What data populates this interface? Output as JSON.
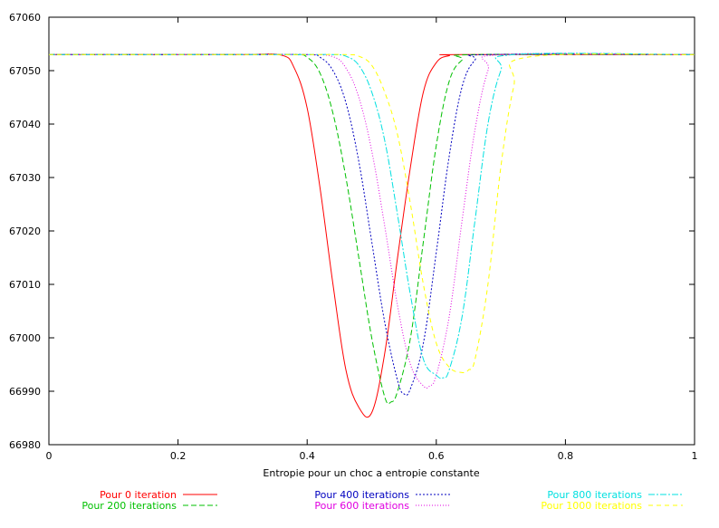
{
  "chart_data": {
    "type": "line",
    "title": "",
    "xlabel": "Entropie pour un choc a entropie constante",
    "ylabel": "",
    "xlim": [
      0,
      1
    ],
    "ylim": [
      66980,
      67060
    ],
    "x_ticks": [
      0,
      0.2,
      0.4,
      0.6,
      0.8,
      1
    ],
    "x_tick_labels": [
      "0",
      "0.2",
      "0.4",
      "0.6",
      "0.8",
      "1"
    ],
    "y_ticks": [
      66980,
      66990,
      67000,
      67010,
      67020,
      67030,
      67040,
      67050,
      67060
    ],
    "y_tick_labels": [
      "66980",
      "66990",
      "67000",
      "67010",
      "67020",
      "67030",
      "67040",
      "67050",
      "67060"
    ],
    "grid": false,
    "legend_position": "bottom",
    "baseline": 67053,
    "series": [
      {
        "name": "Pour 0 iteration",
        "color": "#ff0000",
        "dash": "solid",
        "x": [
          0,
          0.1,
          0.2,
          0.3,
          0.36,
          0.38,
          0.4,
          0.42,
          0.44,
          0.46,
          0.48,
          0.5,
          0.52,
          0.54,
          0.56,
          0.58,
          0.6,
          0.62,
          0.64,
          1
        ],
        "y": [
          67053,
          67053,
          67053,
          67053,
          67052.9,
          67050.5,
          67043,
          67028,
          67010,
          66994,
          66987,
          66986,
          66997,
          67015,
          67032,
          67046,
          67051.5,
          67052.8,
          67053,
          67053
        ]
      },
      {
        "name": "Pour 200 iterations",
        "color": "#00c000",
        "dash": "6,3",
        "x": [
          0,
          0.1,
          0.2,
          0.3,
          0.38,
          0.4,
          0.42,
          0.44,
          0.46,
          0.48,
          0.5,
          0.52,
          0.53,
          0.54,
          0.56,
          0.58,
          0.6,
          0.62,
          0.64,
          0.66,
          1
        ],
        "y": [
          67053,
          67053,
          67053,
          67053,
          67053,
          67052.5,
          67049.5,
          67042,
          67030,
          67015,
          67000,
          66989,
          66988,
          66990,
          67000,
          67018,
          67036,
          67048,
          67052,
          67053,
          67053
        ]
      },
      {
        "name": "Pour 400 iterations",
        "color": "#0000c0",
        "dash": "2,2",
        "x": [
          0,
          0.1,
          0.2,
          0.3,
          0.4,
          0.42,
          0.44,
          0.46,
          0.48,
          0.5,
          0.52,
          0.54,
          0.55,
          0.56,
          0.58,
          0.6,
          0.62,
          0.64,
          0.66,
          0.68,
          1
        ],
        "y": [
          67053,
          67053,
          67053,
          67053,
          67053,
          67052.5,
          67050,
          67044,
          67033,
          67018,
          67003,
          66992,
          66989.5,
          66990.5,
          66999,
          67016,
          67034,
          67047,
          67052,
          67053,
          67053
        ]
      },
      {
        "name": "Pour 600 iterations",
        "color": "#e000e0",
        "dash": "1,2",
        "x": [
          0,
          0.1,
          0.2,
          0.3,
          0.4,
          0.44,
          0.46,
          0.48,
          0.5,
          0.52,
          0.54,
          0.56,
          0.58,
          0.59,
          0.6,
          0.62,
          0.64,
          0.66,
          0.68,
          0.7,
          1
        ],
        "y": [
          67053,
          67053,
          67053,
          67053,
          67053,
          67052.6,
          67050.5,
          67045,
          67035,
          67021,
          67006,
          66995,
          66991,
          66991,
          66993,
          67004,
          67022,
          67039,
          67050,
          67053,
          67053
        ]
      },
      {
        "name": "Pour 800 iterations",
        "color": "#00e0e0",
        "dash": "7,2,2,2",
        "x": [
          0,
          0.1,
          0.2,
          0.3,
          0.4,
          0.44,
          0.46,
          0.48,
          0.5,
          0.52,
          0.54,
          0.56,
          0.58,
          0.6,
          0.61,
          0.62,
          0.64,
          0.66,
          0.68,
          0.7,
          0.72,
          1
        ],
        "y": [
          67053,
          67053,
          67053,
          67053,
          67053,
          67053,
          67052.7,
          67051,
          67046,
          67037,
          67023,
          67008,
          66996,
          66993,
          66992.5,
          66994,
          67004,
          67022,
          67040,
          67050,
          67053,
          67053
        ]
      },
      {
        "name": "Pour 1000 iterations",
        "color": "#ffff00",
        "dash": "5,4",
        "x": [
          0,
          0.1,
          0.2,
          0.3,
          0.4,
          0.46,
          0.48,
          0.5,
          0.52,
          0.54,
          0.56,
          0.58,
          0.6,
          0.62,
          0.64,
          0.65,
          0.66,
          0.68,
          0.7,
          0.72,
          0.74,
          1
        ],
        "y": [
          67053,
          67053,
          67053,
          67053,
          67053,
          67053,
          67052.7,
          67051,
          67046,
          67038,
          67025,
          67010,
          66999,
          66994.5,
          66993.5,
          66994,
          66996,
          67010,
          67032,
          67047,
          67052.5,
          67053
        ]
      }
    ]
  }
}
